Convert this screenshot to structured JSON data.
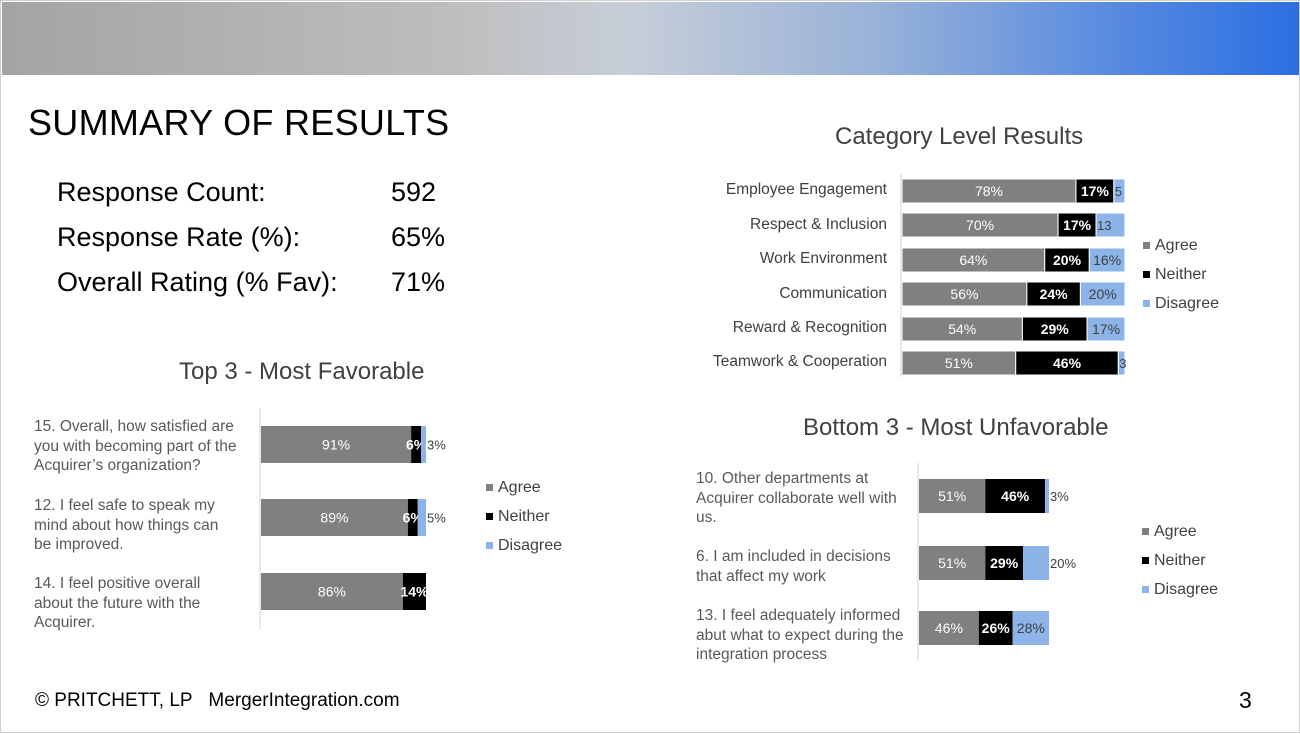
{
  "title": "SUMMARY OF RESULTS",
  "stats": [
    {
      "label": "Response Count:",
      "value": "592"
    },
    {
      "label": "Response Rate (%):",
      "value": "65%"
    },
    {
      "label": "Overall Rating (% Fav):",
      "value": "71%"
    }
  ],
  "colors": {
    "agree": "#808080",
    "neither": "#000000",
    "disagree": "#8cb4e8"
  },
  "legend": [
    "Agree",
    "Neither",
    "Disagree"
  ],
  "footer": {
    "copyright": "© PRITCHETT, LP",
    "site": "MergerIntegration.com"
  },
  "page_number": "3",
  "chart_data": [
    {
      "type": "bar",
      "orientation": "horizontal",
      "stacked": true,
      "title": "Top 3 - Most Favorable",
      "categories": [
        "15. Overall, how satisfied are you with becoming part of the Acquirer’s organization?",
        "12. I feel safe to speak my mind about how things can be improved.",
        "14. I feel positive overall about the future with the Acquirer."
      ],
      "category_lines": [
        [
          "15. Overall, how satisfied are",
          "you with becoming part of the",
          "Acquirer’s organization?"
        ],
        [
          "12. I feel safe to speak my",
          "mind about how things can",
          "be improved."
        ],
        [
          "14. I feel positive overall",
          "about the future with the",
          "Acquirer."
        ]
      ],
      "series": [
        {
          "name": "Agree",
          "values": [
            91,
            89,
            86
          ]
        },
        {
          "name": "Neither",
          "values": [
            6,
            6,
            14
          ]
        },
        {
          "name": "Disagree",
          "values": [
            3,
            5,
            0
          ]
        }
      ],
      "xlim": [
        0,
        100
      ],
      "legend_position": "right"
    },
    {
      "type": "bar",
      "orientation": "horizontal",
      "stacked": true,
      "title": "Category Level Results",
      "categories": [
        "Employee Engagement",
        "Respect & Inclusion",
        "Work Environment",
        "Communication",
        "Reward & Recognition",
        "Teamwork & Cooperation"
      ],
      "series": [
        {
          "name": "Agree",
          "values": [
            78,
            70,
            64,
            56,
            54,
            51
          ]
        },
        {
          "name": "Neither",
          "values": [
            17,
            17,
            20,
            24,
            29,
            46
          ]
        },
        {
          "name": "Disagree",
          "values": [
            5,
            13,
            16,
            20,
            17,
            3
          ]
        }
      ],
      "xlim": [
        0,
        100
      ],
      "legend_position": "right"
    },
    {
      "type": "bar",
      "orientation": "horizontal",
      "stacked": true,
      "title": "Bottom 3 - Most Unfavorable",
      "categories": [
        "10. Other departments at Acquirer collaborate well with us.",
        "6. I am included in decisions that affect my work",
        "13. I feel adequately informed abut what to expect during the integration process"
      ],
      "category_lines": [
        [
          "10. Other departments at",
          "Acquirer collaborate well with",
          "us."
        ],
        [
          "6. I am included in decisions",
          "that affect my work"
        ],
        [
          "13. I feel adequately informed",
          "abut what to expect during the",
          "integration process"
        ]
      ],
      "series": [
        {
          "name": "Agree",
          "values": [
            51,
            51,
            46
          ]
        },
        {
          "name": "Neither",
          "values": [
            46,
            29,
            26
          ]
        },
        {
          "name": "Disagree",
          "values": [
            3,
            20,
            28
          ]
        }
      ],
      "xlim": [
        0,
        100
      ],
      "legend_position": "right"
    }
  ]
}
